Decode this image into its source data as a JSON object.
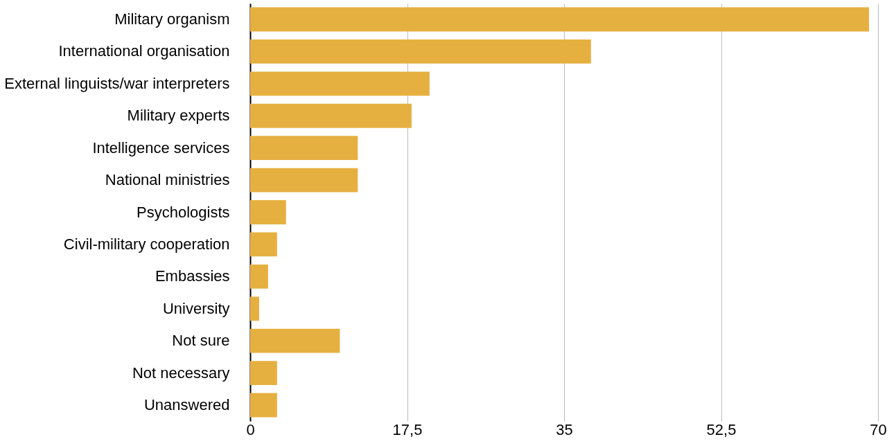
{
  "chart_data": {
    "type": "bar",
    "orientation": "horizontal",
    "categories": [
      "Military organism",
      "International organisation",
      "External linguists/war interpreters",
      "Military experts",
      "Intelligence services",
      "National ministries",
      "Psychologists",
      "Civil-military cooperation",
      "Embassies",
      "University",
      "Not sure",
      "Not necessary",
      "Unanswered"
    ],
    "values": [
      69,
      38,
      20,
      18,
      12,
      12,
      4,
      3,
      2,
      1,
      10,
      3,
      3
    ],
    "color": "#e6b040",
    "xlim": [
      0,
      70
    ],
    "xticks": [
      0,
      {
        "value": 17.5,
        "label": "17,5"
      },
      35,
      {
        "value": 52.5,
        "label": "52,5"
      },
      70
    ],
    "grid": "x"
  }
}
